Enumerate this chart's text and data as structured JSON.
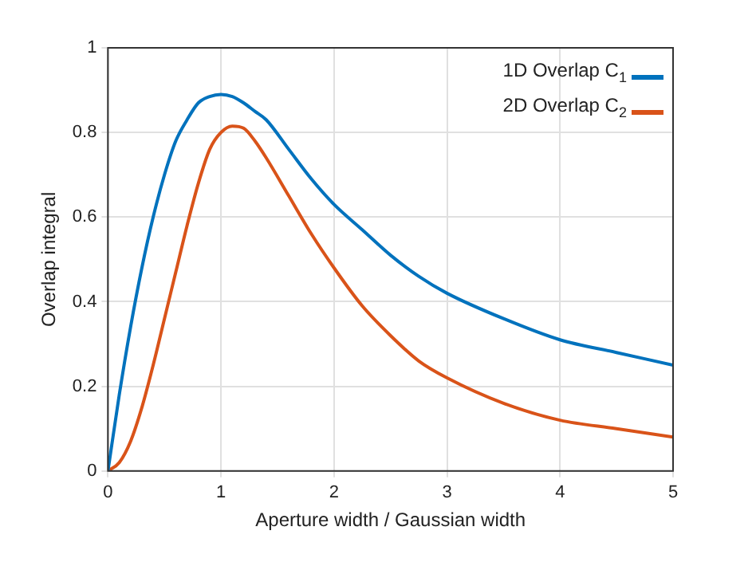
{
  "chart_data": {
    "type": "line",
    "xlabel": "Aperture width / Gaussian width",
    "ylabel": "Overlap integral",
    "xlim": [
      0,
      5
    ],
    "xticks": [
      0,
      1,
      2,
      3,
      4,
      5
    ],
    "ylim": [
      0,
      1
    ],
    "yticks": [
      0,
      0.2,
      0.4,
      0.6,
      0.8,
      1
    ],
    "grid": true,
    "legend": "top right",
    "marker": "none",
    "line_style": "solid",
    "x": [
      0,
      0.1,
      0.2,
      0.3,
      0.4,
      0.5,
      0.6,
      0.7,
      0.8,
      0.9,
      1.0,
      1.1,
      1.2,
      1.3,
      1.4,
      1.6,
      1.8,
      2.0,
      2.25,
      2.5,
      2.75,
      3.0,
      3.5,
      4.0,
      4.5,
      5.0
    ],
    "series": [
      {
        "name": "1D Overlap C$_{1}$",
        "color": "#0072bd",
        "values": [
          0,
          0.18,
          0.34,
          0.48,
          0.6,
          0.7,
          0.78,
          0.83,
          0.87,
          0.885,
          0.89,
          0.885,
          0.87,
          0.85,
          0.83,
          0.76,
          0.69,
          0.63,
          0.57,
          0.51,
          0.46,
          0.42,
          0.36,
          0.31,
          0.28,
          0.25
        ]
      },
      {
        "name": "2D Overlap C$_{2}$",
        "color": "#d95319",
        "values": [
          0,
          0.02,
          0.07,
          0.15,
          0.25,
          0.36,
          0.47,
          0.58,
          0.68,
          0.76,
          0.8,
          0.815,
          0.81,
          0.78,
          0.74,
          0.65,
          0.56,
          0.48,
          0.39,
          0.32,
          0.26,
          0.22,
          0.16,
          0.12,
          0.1,
          0.08
        ]
      }
    ]
  }
}
